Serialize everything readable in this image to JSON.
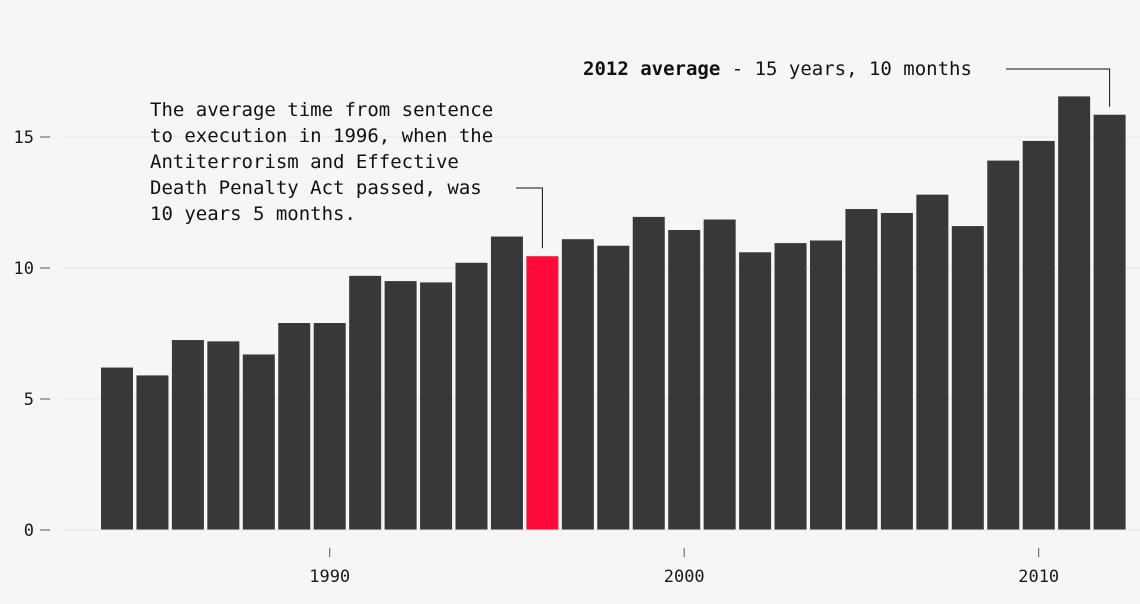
{
  "chart_data": {
    "type": "bar",
    "x": [
      1984,
      1985,
      1986,
      1987,
      1988,
      1989,
      1990,
      1991,
      1992,
      1993,
      1994,
      1995,
      1996,
      1997,
      1998,
      1999,
      2000,
      2001,
      2002,
      2003,
      2004,
      2005,
      2006,
      2007,
      2008,
      2009,
      2010,
      2011,
      2012
    ],
    "values": [
      6.2,
      5.9,
      7.25,
      7.2,
      6.7,
      7.9,
      7.9,
      9.7,
      9.5,
      9.45,
      10.2,
      11.2,
      10.45,
      11.1,
      10.85,
      11.95,
      11.45,
      11.85,
      10.6,
      10.95,
      11.05,
      12.25,
      12.1,
      12.8,
      11.6,
      14.1,
      14.85,
      16.55,
      15.85
    ],
    "highlight_year": 1996,
    "colors": {
      "bar": "#383838",
      "highlight": "#ff0a3a",
      "axis": "#555555",
      "grid": "#e6e6e3",
      "background": "#f6f6f4"
    },
    "ylim": [
      0,
      17
    ],
    "yticks": [
      0,
      5,
      10,
      15
    ],
    "xticks": [
      1990,
      2000,
      2010
    ],
    "title": "",
    "xlabel": "",
    "ylabel": "",
    "grid": true,
    "annotations": [
      {
        "id": "anno-1996",
        "year": 1996,
        "lines": [
          "The average time from sentence",
          "to execution in 1996, when the",
          "Antiterrorism and Effective",
          "Death Penalty Act passed, was",
          "10 years 5 months."
        ]
      },
      {
        "id": "anno-2012",
        "year": 2012,
        "bold": "2012 average",
        "rest": " - 15 years, 10 months"
      }
    ]
  }
}
